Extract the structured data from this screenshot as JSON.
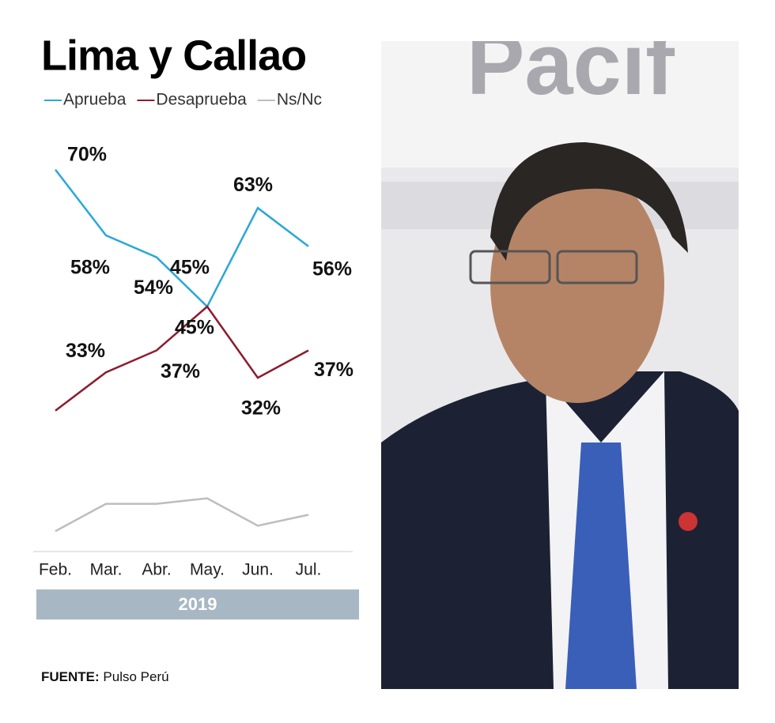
{
  "chart_data": {
    "type": "line",
    "title": "Lima y Callao",
    "categories": [
      "Feb.",
      "Mar.",
      "Abr.",
      "May.",
      "Jun.",
      "Jul."
    ],
    "series": [
      {
        "name": "Aprueba",
        "color": "#2aa7da",
        "values": [
          70,
          58,
          54,
          45,
          63,
          56
        ],
        "value_labels": [
          "70%",
          "58%",
          "54%",
          "45%",
          "63%",
          "56%"
        ]
      },
      {
        "name": "Desaprueba",
        "color": "#8c1c2e",
        "values": [
          26,
          33,
          37,
          45,
          32,
          37
        ],
        "value_labels": [
          null,
          "33%",
          "37%",
          "45%",
          "32%",
          "37%"
        ]
      },
      {
        "name": "Ns/Nc",
        "color": "#bdbdbd",
        "values": [
          4,
          9,
          9,
          10,
          5,
          7
        ]
      }
    ],
    "ylim": [
      0,
      75
    ],
    "period": "2019",
    "source_label": "FUENTE:",
    "source": "Pulso Perú"
  },
  "photo": {
    "sign_text": "Pacif"
  }
}
